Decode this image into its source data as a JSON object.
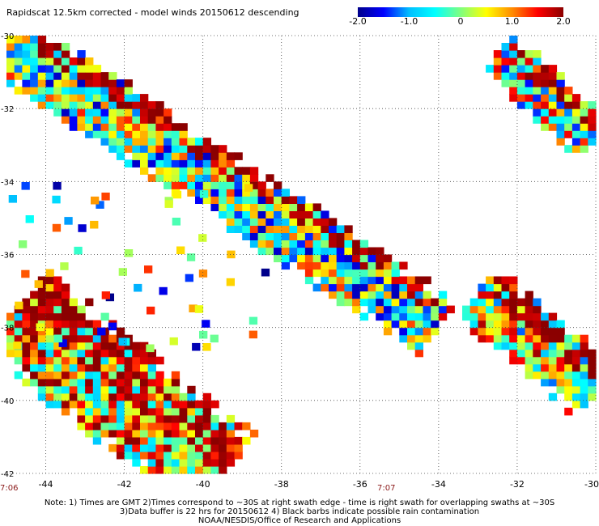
{
  "title": "Rapidscat 12.5km corrected - model winds 20150612 descending",
  "colorbar": {
    "min": -2.0,
    "max": 2.0,
    "tick_labels": [
      "-2.0",
      "-1.0",
      "0",
      "1.0",
      "2.0"
    ],
    "tick_values": [
      -2.0,
      -1.0,
      0,
      1.0,
      2.0
    ],
    "colors": [
      "#00008b",
      "#0000ff",
      "#00bfff",
      "#00ffff",
      "#7fff7f",
      "#ffff00",
      "#ff8c00",
      "#ff0000",
      "#8b0000"
    ]
  },
  "time_labels": {
    "left": "7:06",
    "middle": "7:07"
  },
  "notes": [
    "Note: 1) Times are GMT 2)Times correspond to ~30S at right swath edge - time is right swath for overlapping swaths at ~30S",
    "3)Data buffer is 22 hrs for 20150612 4) Black barbs indicate possible rain contamination",
    "NOAA/NESDIS/Office of Research and Applications"
  ],
  "chart_data": {
    "type": "heatmap",
    "title": "Rapidscat 12.5km corrected - model winds 20150612 descending",
    "xlabel": "",
    "ylabel": "",
    "xlim": [
      -45,
      -30
    ],
    "ylim": [
      -42,
      -30
    ],
    "x_ticks": [
      -44,
      -42,
      -40,
      -38,
      -36,
      -34,
      -32,
      -30
    ],
    "x_tick_labels": [
      "-44",
      "-42",
      "-40",
      "-38",
      "-36",
      "-34",
      "-32",
      "-30"
    ],
    "y_ticks": [
      -30,
      -32,
      -34,
      -36,
      -38,
      -40,
      -42
    ],
    "y_tick_labels": [
      "-30",
      "-32",
      "-34",
      "-36",
      "-38",
      "-40",
      "-42"
    ],
    "grid": true,
    "grid_style": "dotted",
    "value_range": [
      -2.0,
      2.0
    ],
    "cell_size_deg": 0.2,
    "swaths": [
      {
        "name": "",
        "lon_start": -45.0,
        "lat_start": -30.2,
        "lon_end": -34.0,
        "lat_end": -38.0,
        "half_width_deg": 0.9,
        "bias": -0.2,
        "high_edge_fraction": 0.35
      },
      {
        "name": "",
        "lon_start": -44.8,
        "lat_start": -37.5,
        "lon_end": -39.5,
        "lat_end": -42.0,
        "half_width_deg": 1.4,
        "bias": 0.6,
        "high_edge_fraction": 0.5
      },
      {
        "name": "",
        "lon_start": -32.5,
        "lat_start": -30.5,
        "lon_end": -30.0,
        "lat_end": -32.8,
        "half_width_deg": 0.7,
        "bias": 0.1,
        "high_edge_fraction": 0.45
      },
      {
        "name": "",
        "lon_start": -33.0,
        "lat_start": -37.0,
        "lon_end": -30.0,
        "lat_end": -39.8,
        "half_width_deg": 0.9,
        "bias": 0.3,
        "high_edge_fraction": 0.45
      }
    ]
  }
}
